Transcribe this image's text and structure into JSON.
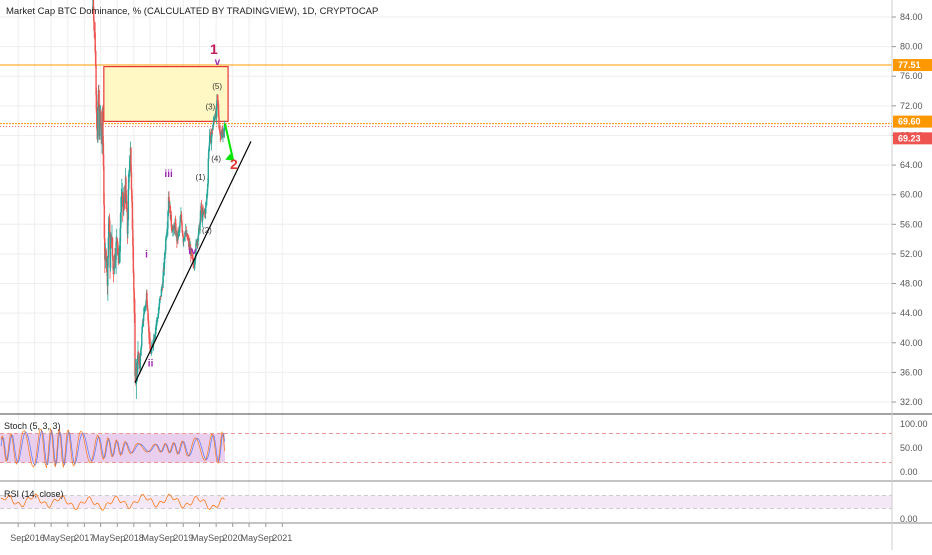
{
  "chart_title": "Market Cap BTC Dominance, % (CALCULATED BY TRADINGVIEW), 1D, CRYPTOCAP",
  "colors": {
    "up": "#26a69a",
    "down": "#ef5350",
    "zone_fill": "#fff8c4",
    "zone_border": "#e53935",
    "resistance_line": "#ff9800",
    "trend_line": "#000000",
    "arrow": "#00e600",
    "wave_major": "#c2185b",
    "wave_minor": "#9c27b0",
    "wave_sub": "#333333",
    "stoch_band": "#e1bee7",
    "stoch_line": "#ff6d00",
    "stoch_signal": "#2962ff",
    "rsi_band": "#f3e5f5"
  },
  "price_axis": {
    "ticks": [
      "84.00",
      "80.00",
      "76.00",
      "72.00",
      "68.00",
      "64.00",
      "60.00",
      "56.00",
      "52.00",
      "48.00",
      "44.00",
      "40.00",
      "36.00",
      "32.00"
    ]
  },
  "price_badges": [
    {
      "label": "77.51",
      "color": "#ff9800"
    },
    {
      "label": "69.60",
      "color": "#ff9800"
    },
    {
      "label": "69.23",
      "color": "#ef5350"
    }
  ],
  "time_axis": {
    "ticks": [
      "Sep",
      "2016",
      "May",
      "Sep",
      "2017",
      "May",
      "Sep",
      "2018",
      "May",
      "Sep",
      "2019",
      "May",
      "Sep",
      "2020",
      "May",
      "Sep",
      "2021"
    ]
  },
  "wave_labels": [
    {
      "text": "1",
      "kind": "major"
    },
    {
      "text": "v",
      "kind": "minor"
    },
    {
      "text": "2",
      "kind": "target"
    },
    {
      "text": "i",
      "kind": "minor"
    },
    {
      "text": "ii",
      "kind": "minor"
    },
    {
      "text": "iii",
      "kind": "minor"
    },
    {
      "text": "iv",
      "kind": "minor"
    },
    {
      "text": "(1)",
      "kind": "sub"
    },
    {
      "text": "(2)",
      "kind": "sub"
    },
    {
      "text": "(3)",
      "kind": "sub"
    },
    {
      "text": "(4)",
      "kind": "sub"
    },
    {
      "text": "(5)",
      "kind": "sub"
    }
  ],
  "stoch_panel": {
    "title": "Stoch (5, 3, 3)",
    "ticks": [
      "100.00",
      "50.00",
      "0.00"
    ]
  },
  "rsi_panel": {
    "title": "RSI (14, close)",
    "ticks": [
      "0.00"
    ]
  },
  "chart_data": {
    "type": "line",
    "y_unit": "%",
    "ylim": [
      30,
      86
    ],
    "x_range": [
      "2015-08-01",
      "2021-10-15"
    ],
    "series": [
      {
        "values": [
          {
            "x": "2017-02-28",
            "y": 85.0
          },
          {
            "x": "2017-03-08",
            "y": 86.0
          },
          {
            "x": "2017-03-15",
            "y": 83.0
          },
          {
            "x": "2017-03-22",
            "y": 80.0
          },
          {
            "x": "2017-04-01",
            "y": 72.0
          },
          {
            "x": "2017-04-08",
            "y": 67.0
          },
          {
            "x": "2017-04-15",
            "y": 74.0
          },
          {
            "x": "2017-04-22",
            "y": 69.0
          },
          {
            "x": "2017-05-01",
            "y": 71.0
          },
          {
            "x": "2017-05-08",
            "y": 67.0
          },
          {
            "x": "2017-05-15",
            "y": 70.0
          },
          {
            "x": "2017-05-22",
            "y": 64.0
          },
          {
            "x": "2017-06-01",
            "y": 50.0
          },
          {
            "x": "2017-06-10",
            "y": 53.0
          },
          {
            "x": "2017-06-20",
            "y": 49.0
          },
          {
            "x": "2017-07-01",
            "y": 57.0
          },
          {
            "x": "2017-07-10",
            "y": 51.0
          },
          {
            "x": "2017-07-20",
            "y": 55.0
          },
          {
            "x": "2017-08-01",
            "y": 50.0
          },
          {
            "x": "2017-08-15",
            "y": 52.0
          },
          {
            "x": "2017-09-01",
            "y": 54.0
          },
          {
            "x": "2017-09-15",
            "y": 51.0
          },
          {
            "x": "2017-10-01",
            "y": 60.0
          },
          {
            "x": "2017-10-15",
            "y": 58.0
          },
          {
            "x": "2017-11-01",
            "y": 61.0
          },
          {
            "x": "2017-11-15",
            "y": 55.0
          },
          {
            "x": "2017-11-25",
            "y": 62.0
          },
          {
            "x": "2017-12-08",
            "y": 67.0
          },
          {
            "x": "2017-12-15",
            "y": 60.0
          },
          {
            "x": "2017-12-25",
            "y": 54.0
          },
          {
            "x": "2018-01-05",
            "y": 44.0
          },
          {
            "x": "2018-01-10",
            "y": 34.5
          },
          {
            "x": "2018-01-20",
            "y": 36.0
          },
          {
            "x": "2018-02-01",
            "y": 38.0
          },
          {
            "x": "2018-02-15",
            "y": 37.0
          },
          {
            "x": "2018-03-01",
            "y": 41.0
          },
          {
            "x": "2018-03-15",
            "y": 44.0
          },
          {
            "x": "2018-04-01",
            "y": 45.5
          },
          {
            "x": "2018-04-05",
            "y": 46.5
          },
          {
            "x": "2018-04-12",
            "y": 45.0
          },
          {
            "x": "2018-04-20",
            "y": 42.0
          },
          {
            "x": "2018-05-01",
            "y": 39.0
          },
          {
            "x": "2018-05-10",
            "y": 38.5
          },
          {
            "x": "2018-05-20",
            "y": 40.0
          },
          {
            "x": "2018-06-01",
            "y": 41.0
          },
          {
            "x": "2018-06-15",
            "y": 42.5
          },
          {
            "x": "2018-07-01",
            "y": 44.0
          },
          {
            "x": "2018-07-15",
            "y": 46.0
          },
          {
            "x": "2018-08-01",
            "y": 48.0
          },
          {
            "x": "2018-08-15",
            "y": 51.0
          },
          {
            "x": "2018-08-25",
            "y": 54.0
          },
          {
            "x": "2018-09-05",
            "y": 56.0
          },
          {
            "x": "2018-09-10",
            "y": 58.0
          },
          {
            "x": "2018-09-15",
            "y": 60.0
          },
          {
            "x": "2018-09-25",
            "y": 58.0
          },
          {
            "x": "2018-10-05",
            "y": 56.0
          },
          {
            "x": "2018-10-20",
            "y": 55.0
          },
          {
            "x": "2018-11-01",
            "y": 56.0
          },
          {
            "x": "2018-11-15",
            "y": 54.0
          },
          {
            "x": "2018-12-01",
            "y": 55.0
          },
          {
            "x": "2018-12-15",
            "y": 57.0
          },
          {
            "x": "2019-01-01",
            "y": 54.0
          },
          {
            "x": "2019-01-15",
            "y": 55.0
          },
          {
            "x": "2019-02-01",
            "y": 54.0
          },
          {
            "x": "2019-02-15",
            "y": 53.0
          },
          {
            "x": "2019-03-01",
            "y": 52.0
          },
          {
            "x": "2019-03-15",
            "y": 50.5
          },
          {
            "x": "2019-03-25",
            "y": 51.0
          },
          {
            "x": "2019-04-05",
            "y": 53.0
          },
          {
            "x": "2019-04-15",
            "y": 54.0
          },
          {
            "x": "2019-04-25",
            "y": 55.0
          },
          {
            "x": "2019-05-05",
            "y": 56.0
          },
          {
            "x": "2019-05-12",
            "y": 58.5
          },
          {
            "x": "2019-05-20",
            "y": 57.0
          },
          {
            "x": "2019-06-01",
            "y": 57.5
          },
          {
            "x": "2019-06-15",
            "y": 58.0
          },
          {
            "x": "2019-06-25",
            "y": 60.0
          },
          {
            "x": "2019-07-01",
            "y": 62.0
          },
          {
            "x": "2019-07-05",
            "y": 65.0
          },
          {
            "x": "2019-07-15",
            "y": 68.0
          },
          {
            "x": "2019-07-25",
            "y": 67.5
          },
          {
            "x": "2019-08-05",
            "y": 69.0
          },
          {
            "x": "2019-08-15",
            "y": 70.0
          },
          {
            "x": "2019-08-25",
            "y": 71.0
          },
          {
            "x": "2019-09-01",
            "y": 70.5
          },
          {
            "x": "2019-09-08",
            "y": 73.0
          },
          {
            "x": "2019-09-15",
            "y": 72.0
          },
          {
            "x": "2019-09-22",
            "y": 69.5
          },
          {
            "x": "2019-10-01",
            "y": 68.0
          },
          {
            "x": "2019-10-10",
            "y": 69.0
          },
          {
            "x": "2019-10-18",
            "y": 67.5
          },
          {
            "x": "2019-10-25",
            "y": 68.5
          },
          {
            "x": "2019-11-01",
            "y": 69.23
          }
        ]
      }
    ]
  }
}
